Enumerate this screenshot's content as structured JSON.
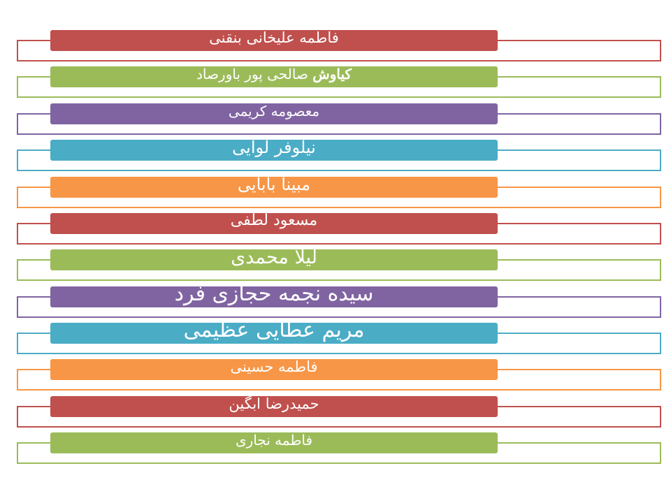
{
  "items": [
    {
      "name": "فاطمه علیخانی بنقنی",
      "color": "#c0504d"
    },
    {
      "name_bold": "کیاوش",
      "name": "صالحی پور باورصاد",
      "color": "#9bbb59"
    },
    {
      "name": "معصومه کریمی",
      "color": "#8064a2"
    },
    {
      "name": "نیلوفر لوایی",
      "color": "#4bacc6"
    },
    {
      "name": "مبینا بابایی",
      "color": "#f79646"
    },
    {
      "name": "مسعود لطفی",
      "color": "#c0504d"
    },
    {
      "name": "لیلا محمدی",
      "color": "#9bbb59"
    },
    {
      "name": "سیده نجمه حجازی فرد",
      "color": "#8064a2"
    },
    {
      "name": "مریم عطایی عظیمی",
      "color": "#4bacc6"
    },
    {
      "name": "فاطمه حسینی",
      "color": "#f79646"
    },
    {
      "name": "حمیدرضا ابگین",
      "color": "#c0504d"
    },
    {
      "name": "فاطمه نجاری",
      "color": "#9bbb59"
    }
  ]
}
